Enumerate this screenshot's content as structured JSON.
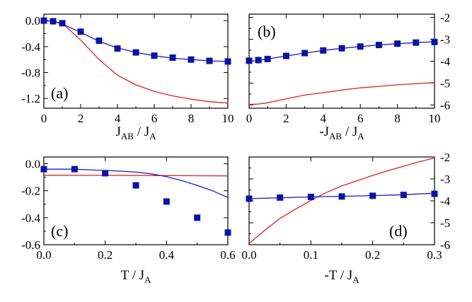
{
  "colors": {
    "squares": "#0a14a0",
    "blue_line": "#1a1ad0",
    "red_line": "#e02020",
    "axes": "#000000"
  },
  "chart_data": [
    {
      "panel": "a",
      "type": "line",
      "tag": "(a)",
      "xlabel_main": "J",
      "xlabel_sub1": "AB",
      "xlabel_mid": " / J",
      "xlabel_sub2": "A",
      "xlim": [
        0,
        10
      ],
      "ylim": [
        -1.35,
        0.1
      ],
      "xticks": [
        0,
        2,
        4,
        6,
        8,
        10
      ],
      "xtick_labels": [
        "0",
        "2",
        "4",
        "6",
        "8",
        "10"
      ],
      "yticks": [
        0.0,
        -0.4,
        -0.8,
        -1.2
      ],
      "ytick_labels": [
        "0.0",
        "-0.4",
        "-0.8",
        "-1.2"
      ],
      "ytick_side": "left",
      "series": [
        {
          "name": "squares",
          "style": "square",
          "x": [
            0,
            0.5,
            1,
            2,
            3,
            4,
            5,
            6,
            7,
            8,
            9,
            10
          ],
          "y": [
            0,
            -0.01,
            -0.04,
            -0.17,
            -0.31,
            -0.43,
            -0.49,
            -0.54,
            -0.57,
            -0.6,
            -0.62,
            -0.63
          ]
        },
        {
          "name": "blue_line",
          "style": "line",
          "x": [
            0,
            0.5,
            1,
            2,
            3,
            4,
            5,
            6,
            7,
            8,
            9,
            10
          ],
          "y": [
            0,
            -0.01,
            -0.05,
            -0.18,
            -0.32,
            -0.42,
            -0.49,
            -0.54,
            -0.58,
            -0.6,
            -0.62,
            -0.63
          ]
        },
        {
          "name": "red_line",
          "style": "line",
          "x": [
            0,
            0.5,
            1,
            2,
            3,
            4,
            5,
            6,
            7,
            8,
            9,
            10
          ],
          "y": [
            0,
            -0.01,
            -0.04,
            -0.3,
            -0.6,
            -0.84,
            -0.99,
            -1.09,
            -1.16,
            -1.21,
            -1.25,
            -1.27
          ]
        }
      ]
    },
    {
      "panel": "b",
      "type": "line",
      "tag": "(b)",
      "xlabel_main": "-J",
      "xlabel_sub1": "AB",
      "xlabel_mid": " / J",
      "xlabel_sub2": "A",
      "xlim": [
        0,
        10
      ],
      "ylim": [
        -6.15,
        -1.85
      ],
      "xticks": [
        0,
        2,
        4,
        6,
        8,
        10
      ],
      "xtick_labels": [
        "0",
        "2",
        "4",
        "6",
        "8",
        "10"
      ],
      "yticks": [
        -2,
        -3,
        -4,
        -5,
        -6
      ],
      "ytick_labels": [
        "-2",
        "-3",
        "-4",
        "-5",
        "-6"
      ],
      "ytick_side": "right",
      "series": [
        {
          "name": "squares",
          "style": "square",
          "x": [
            0,
            0.5,
            1,
            2,
            3,
            4,
            5,
            6,
            7,
            8,
            9,
            10
          ],
          "y": [
            -3.98,
            -3.95,
            -3.9,
            -3.76,
            -3.63,
            -3.51,
            -3.41,
            -3.33,
            -3.26,
            -3.2,
            -3.15,
            -3.12
          ]
        },
        {
          "name": "blue_line",
          "style": "line",
          "x": [
            0,
            0.5,
            1,
            2,
            3,
            4,
            5,
            6,
            7,
            8,
            9,
            10
          ],
          "y": [
            -4.0,
            -3.97,
            -3.9,
            -3.76,
            -3.63,
            -3.51,
            -3.41,
            -3.33,
            -3.26,
            -3.2,
            -3.15,
            -3.11
          ]
        },
        {
          "name": "red_line",
          "style": "line",
          "x": [
            0,
            0.5,
            1,
            2,
            3,
            4,
            5,
            6,
            7,
            8,
            9,
            10
          ],
          "y": [
            -5.98,
            -5.96,
            -5.9,
            -5.72,
            -5.55,
            -5.44,
            -5.32,
            -5.22,
            -5.15,
            -5.08,
            -5.03,
            -4.98
          ]
        }
      ]
    },
    {
      "panel": "c",
      "type": "line",
      "tag": "(c)",
      "xlabel_main": "T",
      "xlabel_sub1": "",
      "xlabel_mid": " / J",
      "xlabel_sub2": "A",
      "xlim": [
        0,
        0.6
      ],
      "ylim": [
        -0.6,
        0.05
      ],
      "xticks": [
        0.0,
        0.2,
        0.4,
        0.6
      ],
      "xtick_labels": [
        "0.0",
        "0.2",
        "0.4",
        "0.6"
      ],
      "yticks": [
        0.0,
        -0.2,
        -0.4,
        -0.6
      ],
      "ytick_labels": [
        "0.0",
        "-0.2",
        "-0.4",
        "-0.6"
      ],
      "ytick_side": "left",
      "series": [
        {
          "name": "squares",
          "style": "square",
          "x": [
            0.0,
            0.1,
            0.2,
            0.3,
            0.4,
            0.5,
            0.6
          ],
          "y": [
            -0.04,
            -0.04,
            -0.07,
            -0.16,
            -0.28,
            -0.4,
            -0.51
          ]
        },
        {
          "name": "blue_line",
          "style": "line",
          "x": [
            0.0,
            0.1,
            0.15,
            0.2,
            0.25,
            0.3,
            0.35,
            0.4,
            0.45,
            0.5,
            0.55,
            0.6
          ],
          "y": [
            -0.04,
            -0.04,
            -0.045,
            -0.05,
            -0.055,
            -0.062,
            -0.075,
            -0.095,
            -0.125,
            -0.16,
            -0.2,
            -0.25
          ]
        },
        {
          "name": "red_line",
          "style": "line",
          "x": [
            0.0,
            0.2,
            0.4,
            0.6
          ],
          "y": [
            -0.085,
            -0.086,
            -0.088,
            -0.09
          ]
        }
      ]
    },
    {
      "panel": "d",
      "type": "line",
      "tag": "(d)",
      "xlabel_main": "-T",
      "xlabel_sub1": "",
      "xlabel_mid": " / J",
      "xlabel_sub2": "A",
      "xlim": [
        0,
        0.3
      ],
      "ylim": [
        -6.0,
        -2.0
      ],
      "xticks": [
        0.0,
        0.1,
        0.2,
        0.3
      ],
      "xtick_labels": [
        "0.0",
        "0.1",
        "0.2",
        "0.3"
      ],
      "yticks": [
        -2,
        -3,
        -4,
        -5,
        -6
      ],
      "ytick_labels": [
        "-2",
        "-3",
        "-4",
        "-5",
        "-6"
      ],
      "ytick_side": "right",
      "series": [
        {
          "name": "squares",
          "style": "square",
          "x": [
            0.0,
            0.05,
            0.1,
            0.15,
            0.2,
            0.25,
            0.3
          ],
          "y": [
            -3.9,
            -3.85,
            -3.82,
            -3.8,
            -3.77,
            -3.73,
            -3.68
          ]
        },
        {
          "name": "blue_line",
          "style": "line",
          "x": [
            0.0,
            0.05,
            0.1,
            0.15,
            0.2,
            0.25,
            0.3
          ],
          "y": [
            -3.9,
            -3.86,
            -3.82,
            -3.79,
            -3.76,
            -3.72,
            -3.65
          ]
        },
        {
          "name": "red_line",
          "style": "line",
          "x": [
            0.0,
            0.025,
            0.05,
            0.075,
            0.1,
            0.125,
            0.15,
            0.175,
            0.2,
            0.225,
            0.25,
            0.275,
            0.3
          ],
          "y": [
            -5.95,
            -5.35,
            -4.8,
            -4.38,
            -3.98,
            -3.62,
            -3.32,
            -3.08,
            -2.84,
            -2.62,
            -2.42,
            -2.22,
            -2.05
          ]
        }
      ]
    }
  ]
}
